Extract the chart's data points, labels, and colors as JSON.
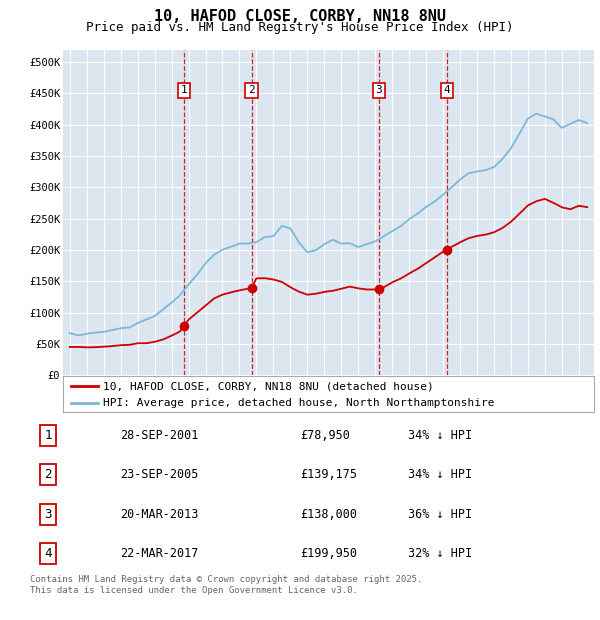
{
  "title": "10, HAFOD CLOSE, CORBY, NN18 8NU",
  "subtitle": "Price paid vs. HM Land Registry's House Price Index (HPI)",
  "ylim": [
    0,
    520000
  ],
  "yticks": [
    0,
    50000,
    100000,
    150000,
    200000,
    250000,
    300000,
    350000,
    400000,
    450000,
    500000
  ],
  "ytick_labels": [
    "£0",
    "£50K",
    "£100K",
    "£150K",
    "£200K",
    "£250K",
    "£300K",
    "£350K",
    "£400K",
    "£450K",
    "£500K"
  ],
  "background_color": "#ffffff",
  "plot_bg_color": "#dce6f1",
  "grid_color": "#ffffff",
  "hpi_color": "#7ab8d9",
  "price_color": "#cc0000",
  "xlim_start": 1994.6,
  "xlim_end": 2025.9,
  "purchases": [
    {
      "label": "1",
      "x_year": 2001.74,
      "price": 78950
    },
    {
      "label": "2",
      "x_year": 2005.72,
      "price": 139175
    },
    {
      "label": "3",
      "x_year": 2013.22,
      "price": 138000
    },
    {
      "label": "4",
      "x_year": 2017.22,
      "price": 199950
    }
  ],
  "hpi_data": [
    [
      1995.0,
      65000
    ],
    [
      1995.5,
      64000
    ],
    [
      1996.0,
      66000
    ],
    [
      1996.5,
      67500
    ],
    [
      1997.0,
      70000
    ],
    [
      1997.5,
      72000
    ],
    [
      1998.0,
      75000
    ],
    [
      1998.5,
      78000
    ],
    [
      1999.0,
      82000
    ],
    [
      1999.5,
      88000
    ],
    [
      2000.0,
      95000
    ],
    [
      2000.5,
      105000
    ],
    [
      2001.0,
      115000
    ],
    [
      2001.5,
      128000
    ],
    [
      2002.0,
      145000
    ],
    [
      2002.5,
      162000
    ],
    [
      2003.0,
      178000
    ],
    [
      2003.5,
      192000
    ],
    [
      2004.0,
      200000
    ],
    [
      2004.5,
      207000
    ],
    [
      2005.0,
      208000
    ],
    [
      2005.5,
      210000
    ],
    [
      2006.0,
      213000
    ],
    [
      2006.5,
      218000
    ],
    [
      2007.0,
      222000
    ],
    [
      2007.5,
      240000
    ],
    [
      2008.0,
      235000
    ],
    [
      2008.5,
      215000
    ],
    [
      2009.0,
      195000
    ],
    [
      2009.5,
      200000
    ],
    [
      2010.0,
      210000
    ],
    [
      2010.5,
      215000
    ],
    [
      2011.0,
      212000
    ],
    [
      2011.5,
      210000
    ],
    [
      2012.0,
      207000
    ],
    [
      2012.5,
      210000
    ],
    [
      2013.0,
      215000
    ],
    [
      2013.5,
      220000
    ],
    [
      2014.0,
      228000
    ],
    [
      2014.5,
      238000
    ],
    [
      2015.0,
      248000
    ],
    [
      2015.5,
      258000
    ],
    [
      2016.0,
      268000
    ],
    [
      2016.5,
      278000
    ],
    [
      2017.0,
      290000
    ],
    [
      2017.5,
      302000
    ],
    [
      2018.0,
      312000
    ],
    [
      2018.5,
      320000
    ],
    [
      2019.0,
      325000
    ],
    [
      2019.5,
      328000
    ],
    [
      2020.0,
      330000
    ],
    [
      2020.5,
      345000
    ],
    [
      2021.0,
      362000
    ],
    [
      2021.5,
      385000
    ],
    [
      2022.0,
      410000
    ],
    [
      2022.5,
      418000
    ],
    [
      2023.0,
      415000
    ],
    [
      2023.5,
      408000
    ],
    [
      2024.0,
      395000
    ],
    [
      2024.5,
      400000
    ],
    [
      2025.0,
      408000
    ],
    [
      2025.5,
      405000
    ]
  ],
  "red_data": [
    [
      1995.0,
      45000
    ],
    [
      1995.5,
      44000
    ],
    [
      1996.0,
      44500
    ],
    [
      1996.5,
      45000
    ],
    [
      1997.0,
      46000
    ],
    [
      1997.5,
      47000
    ],
    [
      1998.0,
      48000
    ],
    [
      1998.5,
      49000
    ],
    [
      1999.0,
      50000
    ],
    [
      1999.5,
      51000
    ],
    [
      2000.0,
      53000
    ],
    [
      2000.5,
      56000
    ],
    [
      2001.0,
      62000
    ],
    [
      2001.5,
      70000
    ],
    [
      2001.74,
      78950
    ],
    [
      2002.0,
      88000
    ],
    [
      2002.5,
      100000
    ],
    [
      2003.0,
      112000
    ],
    [
      2003.5,
      122000
    ],
    [
      2004.0,
      128000
    ],
    [
      2004.5,
      132000
    ],
    [
      2005.0,
      136000
    ],
    [
      2005.72,
      139175
    ],
    [
      2006.0,
      155000
    ],
    [
      2006.5,
      155000
    ],
    [
      2007.0,
      152000
    ],
    [
      2007.5,
      148000
    ],
    [
      2008.0,
      140000
    ],
    [
      2008.5,
      133000
    ],
    [
      2009.0,
      128000
    ],
    [
      2009.5,
      130000
    ],
    [
      2010.0,
      133000
    ],
    [
      2010.5,
      135000
    ],
    [
      2011.0,
      138000
    ],
    [
      2011.5,
      140000
    ],
    [
      2012.0,
      138000
    ],
    [
      2012.5,
      137000
    ],
    [
      2013.0,
      137000
    ],
    [
      2013.22,
      138000
    ],
    [
      2013.5,
      140000
    ],
    [
      2014.0,
      148000
    ],
    [
      2014.5,
      155000
    ],
    [
      2015.0,
      162000
    ],
    [
      2015.5,
      170000
    ],
    [
      2016.0,
      178000
    ],
    [
      2016.5,
      188000
    ],
    [
      2017.0,
      196000
    ],
    [
      2017.22,
      199950
    ],
    [
      2017.5,
      205000
    ],
    [
      2018.0,
      212000
    ],
    [
      2018.5,
      218000
    ],
    [
      2019.0,
      222000
    ],
    [
      2019.5,
      225000
    ],
    [
      2020.0,
      228000
    ],
    [
      2020.5,
      235000
    ],
    [
      2021.0,
      245000
    ],
    [
      2021.5,
      258000
    ],
    [
      2022.0,
      270000
    ],
    [
      2022.5,
      278000
    ],
    [
      2023.0,
      282000
    ],
    [
      2023.5,
      275000
    ],
    [
      2024.0,
      268000
    ],
    [
      2024.5,
      265000
    ],
    [
      2025.0,
      270000
    ],
    [
      2025.5,
      268000
    ]
  ],
  "table_rows": [
    {
      "num": "1",
      "date": "28-SEP-2001",
      "price": "£78,950",
      "pct": "34% ↓ HPI"
    },
    {
      "num": "2",
      "date": "23-SEP-2005",
      "price": "£139,175",
      "pct": "34% ↓ HPI"
    },
    {
      "num": "3",
      "date": "20-MAR-2013",
      "price": "£138,000",
      "pct": "36% ↓ HPI"
    },
    {
      "num": "4",
      "date": "22-MAR-2017",
      "price": "£199,950",
      "pct": "32% ↓ HPI"
    }
  ],
  "footnote1": "Contains HM Land Registry data © Crown copyright and database right 2025.",
  "footnote2": "This data is licensed under the Open Government Licence v3.0.",
  "legend_red": "10, HAFOD CLOSE, CORBY, NN18 8NU (detached house)",
  "legend_blue": "HPI: Average price, detached house, North Northamptonshire",
  "title_fontsize": 11,
  "subtitle_fontsize": 9,
  "tick_fontsize": 7,
  "legend_fontsize": 8,
  "table_fontsize": 8.5,
  "footnote_fontsize": 6.5
}
